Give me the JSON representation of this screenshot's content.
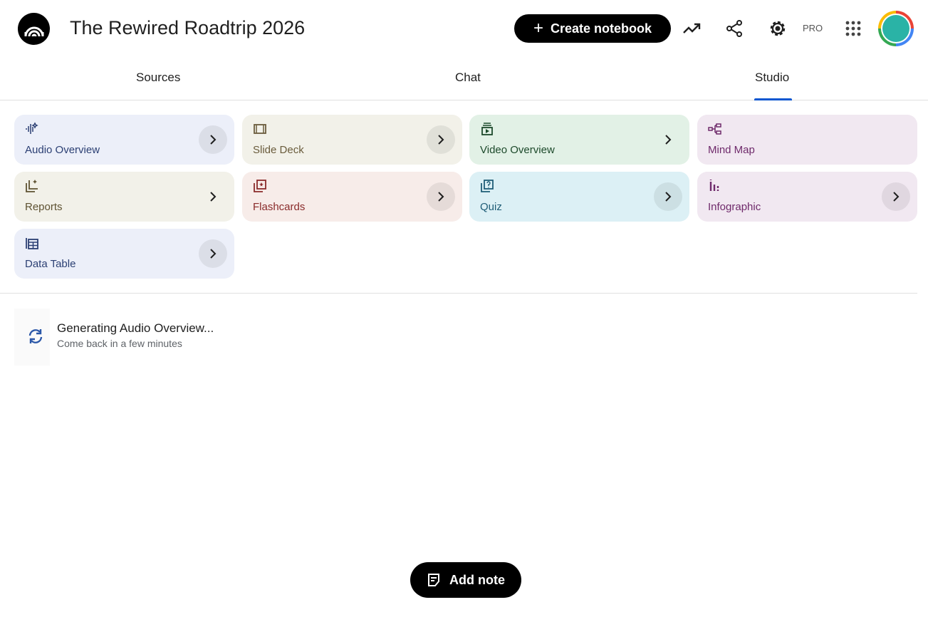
{
  "header": {
    "title": "The Rewired Roadtrip 2026",
    "create_label": "Create notebook",
    "pro_label": "PRO",
    "icons": [
      "notebooklm-logo",
      "analytics-icon",
      "share-icon",
      "settings-icon",
      "apps-icon",
      "avatar"
    ]
  },
  "tabs": [
    {
      "label": "Sources"
    },
    {
      "label": "Chat"
    },
    {
      "label": "Studio",
      "active": true
    }
  ],
  "studio": {
    "cards": [
      {
        "label": "Audio Overview",
        "icon": "audio-sparkle-icon",
        "bg": "#eceff9",
        "color": "#2b3f73"
      },
      {
        "label": "Slide Deck",
        "icon": "slides-icon",
        "bg": "#f2f1e9",
        "color": "#6a5c3c"
      },
      {
        "label": "Video Overview",
        "icon": "video-icon",
        "bg": "#e2f1e6",
        "color": "#1d4a2b"
      },
      {
        "label": "Mind Map",
        "icon": "mind-map-icon",
        "bg": "#f1e8f1",
        "color": "#6f2a6b"
      },
      {
        "label": "Reports",
        "icon": "reports-icon",
        "bg": "#f2f1e9",
        "color": "#5e5232"
      },
      {
        "label": "Flashcards",
        "icon": "flashcards-icon",
        "bg": "#f7ece9",
        "color": "#8a2b2b"
      },
      {
        "label": "Quiz",
        "icon": "quiz-icon",
        "bg": "#dcf0f5",
        "color": "#1f5d77"
      },
      {
        "label": "Infographic",
        "icon": "infographic-icon",
        "bg": "#f1e8f1",
        "color": "#6f2a6b"
      },
      {
        "label": "Data Table",
        "icon": "data-table-icon",
        "bg": "#eceff9",
        "color": "#2b3f73"
      }
    ],
    "generating": {
      "title": "Generating Audio Overview...",
      "subtitle": "Come back in a few minutes"
    }
  },
  "add_note_label": "Add note",
  "accent": "#0b57d0"
}
